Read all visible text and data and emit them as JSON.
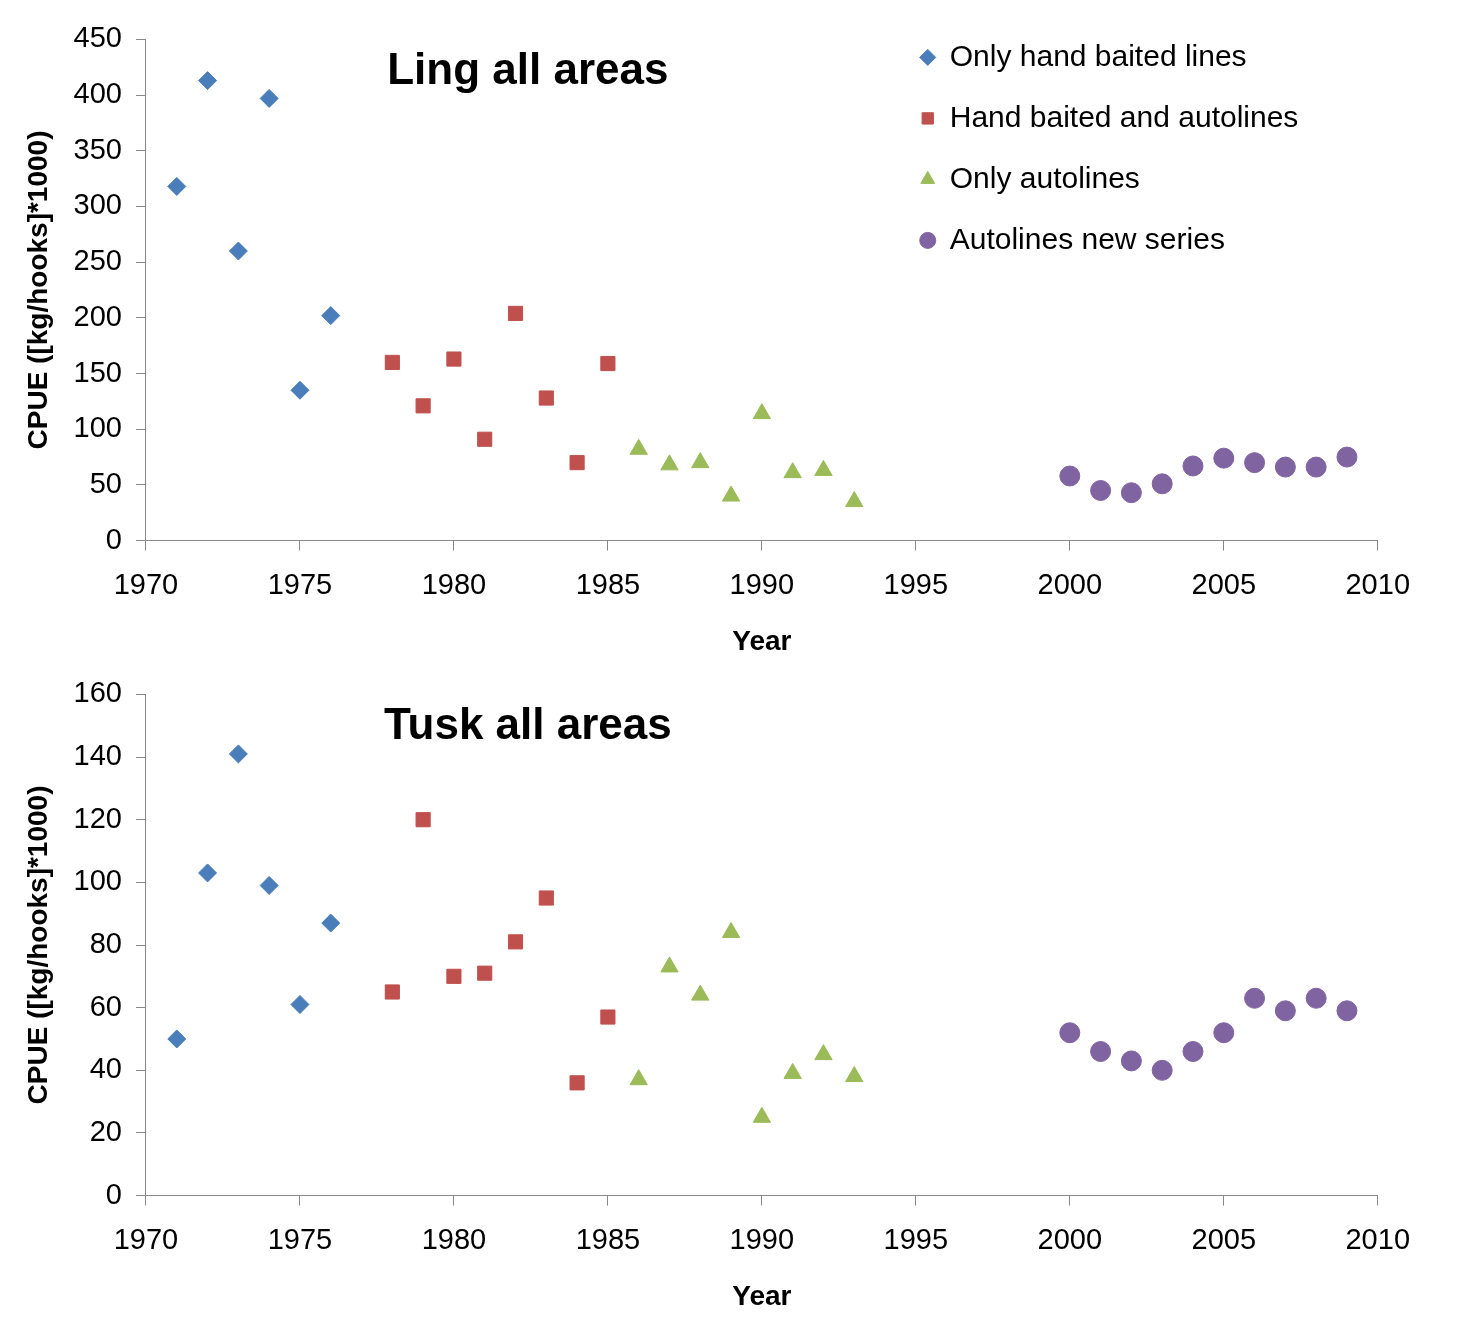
{
  "chart_data": [
    {
      "type": "scatter",
      "title": "Ling all areas",
      "xlabel": "Year",
      "ylabel": "CPUE ([kg/hooks]*1000)",
      "xlim": [
        1970,
        2010
      ],
      "xticks": [
        1970,
        1975,
        1980,
        1985,
        1990,
        1995,
        2000,
        2005,
        2010
      ],
      "ylim": [
        0,
        450
      ],
      "yticks": [
        0,
        50,
        100,
        150,
        200,
        250,
        300,
        350,
        400,
        450
      ],
      "grid": false,
      "legend": "top right",
      "series": [
        {
          "name": "Only hand baited lines",
          "color": "#4a7ebb",
          "marker": "diamond",
          "x": [
            1971,
            1972,
            1973,
            1974,
            1975,
            1976
          ],
          "values": [
            318,
            413,
            260,
            397,
            135,
            202
          ]
        },
        {
          "name": "Hand baited and autolines",
          "color": "#c0504d",
          "marker": "square",
          "x": [
            1978,
            1979,
            1980,
            1981,
            1982,
            1983,
            1984,
            1985
          ],
          "values": [
            160,
            121,
            163,
            91,
            204,
            128,
            70,
            159
          ]
        },
        {
          "name": "Only autolines",
          "color": "#9bbb59",
          "marker": "triangle",
          "x": [
            1986,
            1987,
            1988,
            1989,
            1990,
            1991,
            1992,
            1993
          ],
          "values": [
            82,
            68,
            70,
            40,
            114,
            61,
            63,
            35
          ]
        },
        {
          "name": "Autolines new series",
          "color": "#8064a2",
          "marker": "circle",
          "x": [
            2000,
            2001,
            2002,
            2003,
            2004,
            2005,
            2006,
            2007,
            2008,
            2009
          ],
          "values": [
            58,
            45,
            43,
            51,
            67,
            74,
            70,
            66,
            66,
            75
          ]
        }
      ]
    },
    {
      "type": "scatter",
      "title": "Tusk all areas",
      "xlabel": "Year",
      "ylabel": "CPUE ([kg/hooks]*1000)",
      "xlim": [
        1970,
        2010
      ],
      "xticks": [
        1970,
        1975,
        1980,
        1985,
        1990,
        1995,
        2000,
        2005,
        2010
      ],
      "ylim": [
        0,
        160
      ],
      "yticks": [
        0,
        20,
        40,
        60,
        80,
        100,
        120,
        140,
        160
      ],
      "grid": false,
      "legend": false,
      "series": [
        {
          "color": "#4a7ebb",
          "marker": "diamond",
          "x": [
            1971,
            1972,
            1973,
            1974,
            1975,
            1976
          ],
          "values": [
            50,
            103,
            141,
            99,
            61,
            87
          ]
        },
        {
          "color": "#c0504d",
          "marker": "square",
          "x": [
            1978,
            1979,
            1980,
            1981,
            1982,
            1983,
            1984,
            1985
          ],
          "values": [
            65,
            120,
            70,
            71,
            81,
            95,
            36,
            57
          ]
        },
        {
          "color": "#9bbb59",
          "marker": "triangle",
          "x": [
            1986,
            1987,
            1988,
            1989,
            1990,
            1991,
            1992,
            1993
          ],
          "values": [
            37,
            73,
            64,
            84,
            25,
            39,
            45,
            38
          ]
        },
        {
          "color": "#8064a2",
          "marker": "circle",
          "x": [
            2000,
            2001,
            2002,
            2003,
            2004,
            2005,
            2006,
            2007,
            2008,
            2009
          ],
          "values": [
            52,
            46,
            43,
            40,
            46,
            52,
            63,
            59,
            63,
            59
          ]
        }
      ]
    }
  ]
}
